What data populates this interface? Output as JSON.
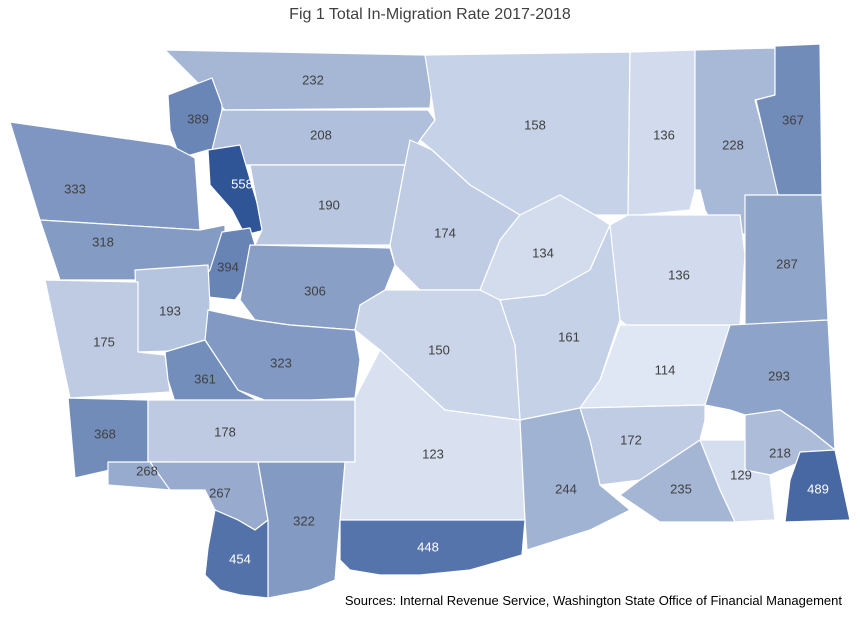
{
  "title": "Fig 1 Total In-Migration Rate 2017-2018",
  "source": "Sources: Internal Revenue Service, Washington State Office of Financial Management",
  "colors": {
    "low": "#dfe6f4",
    "high": "#2f5597",
    "border": "#ffffff",
    "label_dark": "#404040",
    "label_light": "#ffffff"
  },
  "counties": [
    {
      "id": "c232",
      "value": 232
    },
    {
      "id": "c389",
      "value": 389
    },
    {
      "id": "c208",
      "value": 208
    },
    {
      "id": "c158",
      "value": 158
    },
    {
      "id": "c136a",
      "value": 136
    },
    {
      "id": "c228",
      "value": 228
    },
    {
      "id": "c367",
      "value": 367
    },
    {
      "id": "c333",
      "value": 333
    },
    {
      "id": "c558",
      "value": 558
    },
    {
      "id": "c190",
      "value": 190
    },
    {
      "id": "c318",
      "value": 318
    },
    {
      "id": "c174",
      "value": 174
    },
    {
      "id": "c134",
      "value": 134
    },
    {
      "id": "c394",
      "value": 394
    },
    {
      "id": "c136b",
      "value": 136
    },
    {
      "id": "c287",
      "value": 287
    },
    {
      "id": "c306",
      "value": 306
    },
    {
      "id": "c193",
      "value": 193
    },
    {
      "id": "c175",
      "value": 175
    },
    {
      "id": "c161",
      "value": 161
    },
    {
      "id": "c150",
      "value": 150
    },
    {
      "id": "c323",
      "value": 323
    },
    {
      "id": "c361",
      "value": 361
    },
    {
      "id": "c114",
      "value": 114
    },
    {
      "id": "c293",
      "value": 293
    },
    {
      "id": "c368",
      "value": 368
    },
    {
      "id": "c178",
      "value": 178
    },
    {
      "id": "c123",
      "value": 123
    },
    {
      "id": "c172",
      "value": 172
    },
    {
      "id": "c218",
      "value": 218
    },
    {
      "id": "c129",
      "value": 129
    },
    {
      "id": "c268",
      "value": 268
    },
    {
      "id": "c267",
      "value": 267
    },
    {
      "id": "c244",
      "value": 244
    },
    {
      "id": "c235",
      "value": 235
    },
    {
      "id": "c489",
      "value": 489
    },
    {
      "id": "c322",
      "value": 322
    },
    {
      "id": "c448",
      "value": 448
    },
    {
      "id": "c454",
      "value": 454
    }
  ]
}
